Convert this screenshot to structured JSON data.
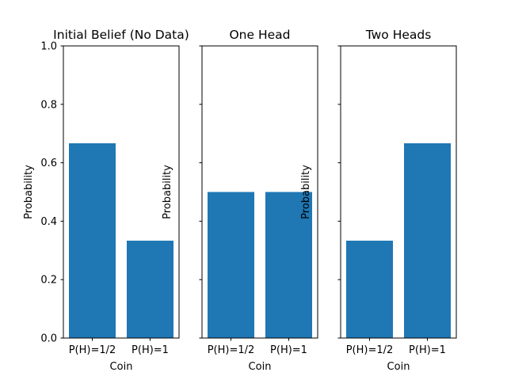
{
  "chart_data": [
    {
      "type": "bar",
      "title": "Initial Belief (No Data)",
      "categories": [
        "P(H)=1/2",
        "P(H)=1"
      ],
      "values": [
        0.6667,
        0.3333
      ],
      "xlabel": "Coin",
      "ylabel": "Probability",
      "ylim": [
        0,
        1.0
      ],
      "yticks": [
        "0.0",
        "0.2",
        "0.4",
        "0.6",
        "0.8",
        "1.0"
      ],
      "color": "#1f77b4",
      "grid": false
    },
    {
      "type": "bar",
      "title": "One Head",
      "categories": [
        "P(H)=1/2",
        "P(H)=1"
      ],
      "values": [
        0.5,
        0.5
      ],
      "xlabel": "Coin",
      "ylabel": "Probability",
      "ylim": [
        0,
        1.0
      ],
      "color": "#1f77b4",
      "grid": false
    },
    {
      "type": "bar",
      "title": "Two Heads",
      "categories": [
        "P(H)=1/2",
        "P(H)=1"
      ],
      "values": [
        0.3333,
        0.6667
      ],
      "xlabel": "Coin",
      "ylabel": "Probability",
      "ylim": [
        0,
        1.0
      ],
      "color": "#1f77b4",
      "grid": false
    }
  ]
}
